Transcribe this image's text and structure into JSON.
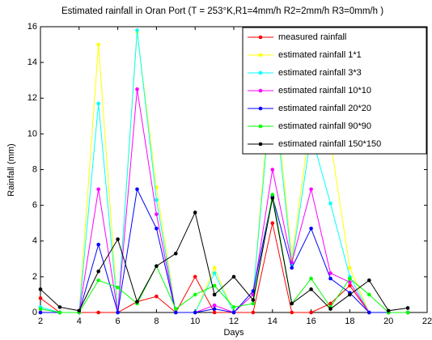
{
  "chart_data": {
    "type": "line",
    "title": "Estimated rainfall in Oran Port (T = 253°K,R1=4mm/h  R2=2mm/h  R3=0mm/h )",
    "x_label": "Days",
    "y_label": "Rainfall (mm)",
    "x": [
      2,
      3,
      4,
      5,
      6,
      7,
      8,
      9,
      10,
      11,
      12,
      13,
      14,
      15,
      16,
      17,
      18,
      19,
      20,
      21
    ],
    "xlim": [
      2,
      22
    ],
    "xticks": [
      2,
      4,
      6,
      8,
      10,
      12,
      14,
      16,
      18,
      20,
      22
    ],
    "ylim": [
      0,
      16
    ],
    "yticks": [
      0,
      2,
      4,
      6,
      8,
      10,
      12,
      14,
      16
    ],
    "legend": "northeast",
    "series": [
      {
        "name": "measured rainfall",
        "color": "#ff0000",
        "values": [
          0.8,
          0,
          0,
          0,
          0,
          0.6,
          0.9,
          0,
          2.0,
          0,
          0,
          0,
          5.0,
          0,
          0,
          0.5,
          1.5,
          0,
          0,
          0
        ]
      },
      {
        "name": "estimated rainfall 1*1",
        "color": "#ffff00",
        "values": [
          0,
          0,
          0,
          15,
          0,
          15.7,
          7,
          0,
          0,
          2.5,
          0,
          1,
          14,
          3,
          11,
          9.6,
          2.5,
          0,
          0,
          0
        ]
      },
      {
        "name": "estimated rainfall 3*3",
        "color": "#00ffff",
        "values": [
          0.3,
          0,
          0,
          11.7,
          0,
          15.8,
          6.3,
          0,
          0,
          2.2,
          0,
          1,
          13,
          2.7,
          10,
          6.1,
          2.0,
          0,
          0,
          0
        ]
      },
      {
        "name": "estimated rainfall 10*10",
        "color": "#ff00ff",
        "values": [
          0,
          0,
          0,
          6.9,
          0,
          12.5,
          5.5,
          0,
          0,
          0.4,
          0,
          1,
          8,
          2.8,
          6.9,
          2.2,
          1.7,
          0,
          0,
          0
        ]
      },
      {
        "name": "estimated rainfall 20*20",
        "color": "#0000ff",
        "values": [
          0,
          0,
          0,
          3.8,
          0,
          6.9,
          4.7,
          0,
          0,
          0.2,
          0,
          1.2,
          6.5,
          2.5,
          4.7,
          1.9,
          1.1,
          0,
          0,
          0
        ]
      },
      {
        "name": "estimated rainfall 90*90",
        "color": "#00ff00",
        "values": [
          0.2,
          0,
          0,
          1.8,
          1.4,
          0.5,
          2.6,
          0.2,
          1.0,
          1.5,
          0.3,
          0.5,
          6.6,
          0.5,
          1.9,
          0.3,
          1.9,
          1.0,
          0,
          0
        ]
      },
      {
        "name": "estimated rainfall 150*150",
        "color": "#000000",
        "values": [
          1.3,
          0.3,
          0.1,
          2.3,
          4.1,
          0.6,
          2.6,
          3.3,
          5.6,
          1.0,
          2.0,
          0.7,
          6.4,
          0.5,
          1.3,
          0.2,
          1.0,
          1.8,
          0.1,
          0.25
        ]
      }
    ]
  }
}
